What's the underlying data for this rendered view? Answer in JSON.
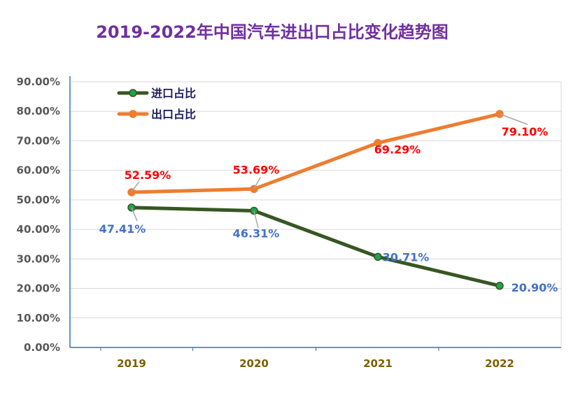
{
  "chart_data": {
    "type": "line",
    "title": "2019-2022年中国汽车进出口占比变化趋势图",
    "categories": [
      "2019",
      "2020",
      "2021",
      "2022"
    ],
    "ylim": [
      0,
      90
    ],
    "yticks": [
      "0.00%",
      "10.00%",
      "20.00%",
      "30.00%",
      "40.00%",
      "50.00%",
      "60.00%",
      "70.00%",
      "80.00%",
      "90.00%"
    ],
    "grid": true,
    "legend_position": "top-left",
    "series": [
      {
        "name": "进口占比",
        "values": [
          47.41,
          46.31,
          30.71,
          20.9
        ],
        "labels": [
          "47.41%",
          "46.31%",
          "30.71%",
          "20.90%"
        ],
        "color": "#375623",
        "marker_color": "#1fa34a",
        "label_color": "#4472c4"
      },
      {
        "name": "出口占比",
        "values": [
          52.59,
          53.69,
          69.29,
          79.1
        ],
        "labels": [
          "52.59%",
          "53.69%",
          "69.29%",
          "79.10%"
        ],
        "color": "#ed7d31",
        "marker_color": "#ed7d31",
        "label_color": "#ff0000"
      }
    ]
  }
}
